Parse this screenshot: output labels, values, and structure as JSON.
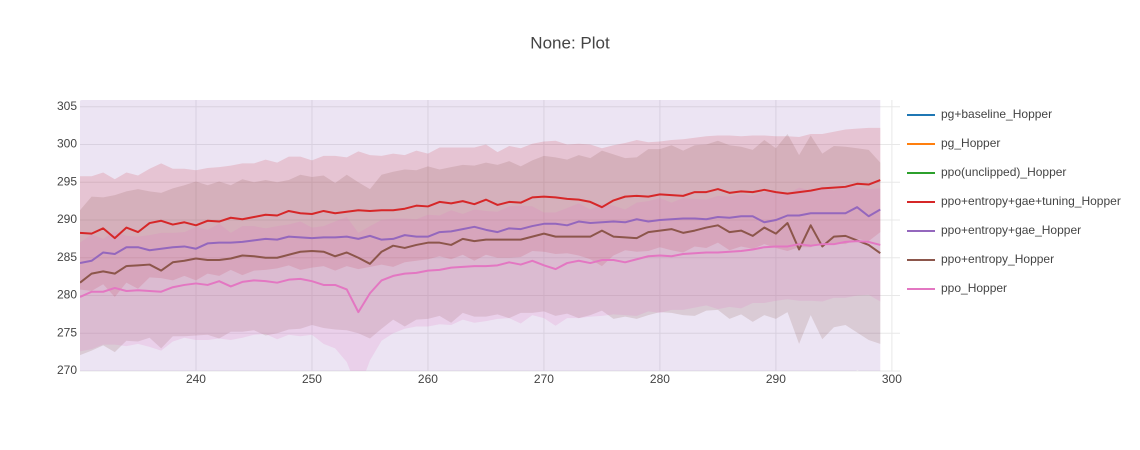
{
  "chart_data": {
    "type": "line",
    "title": "None: Plot",
    "x": [
      230,
      231,
      232,
      233,
      234,
      235,
      236,
      237,
      238,
      239,
      240,
      241,
      242,
      243,
      244,
      245,
      246,
      247,
      248,
      249,
      250,
      251,
      252,
      253,
      254,
      255,
      256,
      257,
      258,
      259,
      260,
      261,
      262,
      263,
      264,
      265,
      266,
      267,
      268,
      269,
      270,
      271,
      272,
      273,
      274,
      275,
      276,
      277,
      278,
      279,
      280,
      281,
      282,
      283,
      284,
      285,
      286,
      287,
      288,
      289,
      290,
      291,
      292,
      293,
      294,
      295,
      296,
      297,
      298,
      299
    ],
    "xlim": [
      230,
      300.7
    ],
    "xticks": [
      240,
      250,
      260,
      270,
      280,
      290,
      300
    ],
    "ylim": [
      270,
      305.9
    ],
    "yticks": [
      270,
      275,
      280,
      285,
      290,
      295,
      300,
      305
    ],
    "grid": true,
    "legend": "right",
    "series": [
      {
        "name": "pg+baseline_Hopper",
        "color": "#1f77b4"
      },
      {
        "name": "pg_Hopper",
        "color": "#ff7f0e"
      },
      {
        "name": "ppo(unclipped)_Hopper",
        "color": "#2ca02c"
      },
      {
        "name": "ppo+entropy+gae+tuning_Hopper",
        "color": "#d62728",
        "values": [
          288.3,
          288.2,
          288.9,
          287.6,
          289.0,
          288.4,
          289.6,
          289.9,
          289.4,
          289.7,
          289.3,
          289.9,
          289.8,
          290.3,
          290.1,
          290.4,
          290.7,
          290.6,
          291.2,
          290.9,
          290.8,
          291.2,
          290.9,
          291.1,
          291.3,
          291.2,
          291.3,
          291.3,
          291.5,
          291.9,
          291.8,
          292.4,
          292.2,
          292.5,
          292.1,
          292.7,
          292.0,
          292.4,
          292.3,
          293.0,
          293.1,
          293.0,
          292.8,
          292.7,
          292.4,
          291.7,
          292.6,
          293.1,
          293.2,
          293.1,
          293.4,
          293.3,
          293.2,
          293.7,
          293.7,
          294.1,
          293.6,
          293.8,
          293.7,
          294.0,
          293.7,
          293.5,
          293.7,
          293.9,
          294.2,
          294.3,
          294.4,
          294.8,
          294.7,
          295.3
        ],
        "error": [
          7.5,
          7.6,
          7.4,
          7.8,
          7.3,
          7.5,
          7.2,
          7.6,
          7.4,
          7.1,
          7.3,
          7.0,
          7.2,
          6.9,
          7.4,
          7.1,
          7.3,
          7.0,
          7.2,
          7.5,
          7.1,
          7.3,
          7.6,
          7.2,
          7.8,
          7.4,
          7.2,
          7.5,
          7.1,
          7.3,
          7.0,
          7.2,
          7.4,
          7.1,
          7.5,
          7.3,
          7.0,
          7.4,
          7.2,
          7.1,
          7.3,
          7.5,
          7.2,
          7.4,
          7.6,
          7.8,
          7.3,
          7.1,
          7.4,
          7.2,
          7.0,
          7.3,
          7.5,
          7.2,
          7.4,
          7.1,
          7.6,
          7.3,
          7.5,
          7.2,
          7.4,
          7.6,
          7.3,
          7.5,
          7.2,
          7.4,
          7.6,
          7.3,
          7.5,
          6.9
        ]
      },
      {
        "name": "ppo+entropy+gae_Hopper",
        "color": "#9467bd",
        "values": [
          284.3,
          284.6,
          285.7,
          285.5,
          286.4,
          286.4,
          286.0,
          286.2,
          286.4,
          286.5,
          286.2,
          286.9,
          287.0,
          287.0,
          287.1,
          287.3,
          287.5,
          287.4,
          287.8,
          287.7,
          287.6,
          287.7,
          287.7,
          287.8,
          287.5,
          287.9,
          287.4,
          287.5,
          288.0,
          287.8,
          287.8,
          288.4,
          288.5,
          288.8,
          289.1,
          288.7,
          288.4,
          288.9,
          288.8,
          289.2,
          289.5,
          289.5,
          289.3,
          289.8,
          289.6,
          289.7,
          289.8,
          289.7,
          290.1,
          289.8,
          290.0,
          290.1,
          290.2,
          290.2,
          290.1,
          290.4,
          290.3,
          290.5,
          290.5,
          289.7,
          290.0,
          290.6,
          290.6,
          290.9,
          290.9,
          290.9,
          290.9,
          291.7,
          290.5,
          291.4
        ],
        "error": [
          21.5,
          22.0,
          21.2,
          21.8,
          22.4,
          21.6,
          21.0,
          21.7,
          22.2,
          21.4,
          21.9,
          21.3,
          21.8,
          22.1,
          21.5,
          21.0,
          21.6,
          22.3,
          21.7,
          21.2,
          21.9,
          21.4,
          22.0,
          21.6,
          21.1,
          21.8,
          22.2,
          21.5,
          21.0,
          21.7,
          22.1,
          21.4,
          21.9,
          21.3,
          21.8,
          22.4,
          21.6,
          21.0,
          21.7,
          22.2,
          21.4,
          21.9,
          21.3,
          21.8,
          22.1,
          21.5,
          21.0,
          21.6,
          22.3,
          21.7,
          21.2,
          21.9,
          21.4,
          22.0,
          21.6,
          21.1,
          21.8,
          22.2,
          21.5,
          21.0,
          21.7,
          22.1,
          21.4,
          21.9,
          21.3,
          21.8,
          22.4,
          21.6,
          21.0,
          21.7
        ]
      },
      {
        "name": "ppo+entropy_Hopper",
        "color": "#8c564b",
        "values": [
          281.7,
          282.9,
          283.2,
          282.9,
          283.9,
          284.0,
          284.1,
          283.3,
          284.4,
          284.6,
          284.9,
          284.7,
          284.7,
          284.9,
          285.3,
          285.2,
          285.0,
          285.0,
          285.4,
          285.8,
          285.9,
          285.8,
          285.2,
          285.7,
          285.0,
          284.2,
          285.8,
          286.6,
          286.3,
          286.7,
          287.0,
          287.0,
          286.7,
          287.5,
          287.2,
          287.4,
          287.4,
          287.4,
          287.4,
          287.8,
          288.2,
          287.8,
          287.8,
          287.8,
          287.8,
          288.6,
          287.8,
          287.7,
          287.6,
          288.4,
          288.6,
          288.8,
          288.3,
          288.6,
          289.0,
          289.3,
          288.4,
          288.6,
          287.9,
          289.0,
          288.2,
          289.6,
          286.1,
          289.3,
          286.5,
          287.8,
          287.9,
          287.3,
          286.7,
          285.6
        ],
        "error": [
          9.6,
          10.2,
          9.8,
          10.4,
          9.9,
          10.1,
          9.7,
          10.3,
          9.8,
          10.0,
          10.2,
          9.9,
          10.4,
          9.7,
          10.1,
          9.8,
          10.3,
          10.0,
          9.9,
          10.2,
          9.8,
          10.1,
          9.7,
          10.3,
          10.0,
          9.9,
          10.2,
          9.8,
          10.4,
          9.9,
          10.1,
          9.7,
          10.3,
          9.8,
          10.0,
          10.2,
          9.9,
          10.4,
          9.7,
          10.1,
          10.3,
          10.5,
          10.2,
          10.8,
          10.4,
          10.6,
          10.9,
          10.5,
          10.7,
          11.0,
          10.8,
          11.1,
          10.9,
          11.3,
          11.0,
          11.2,
          11.5,
          11.1,
          11.4,
          11.6,
          11.3,
          11.8,
          12.5,
          11.9,
          12.3,
          12.0,
          11.8,
          12.2,
          12.6,
          12.0
        ]
      },
      {
        "name": "ppo_Hopper",
        "color": "#e377c2",
        "values": [
          279.8,
          280.5,
          280.5,
          281.0,
          280.6,
          280.7,
          280.6,
          280.5,
          281.1,
          281.4,
          281.6,
          281.4,
          281.9,
          281.2,
          281.8,
          282.0,
          281.9,
          281.7,
          282.1,
          282.2,
          281.9,
          281.4,
          281.4,
          280.8,
          277.8,
          280.3,
          282.0,
          282.6,
          282.9,
          283.0,
          283.3,
          283.4,
          283.7,
          283.8,
          283.9,
          283.9,
          284.0,
          284.4,
          284.1,
          284.6,
          284.0,
          283.5,
          284.3,
          284.6,
          284.3,
          284.7,
          284.7,
          284.4,
          284.8,
          285.2,
          285.3,
          285.2,
          285.5,
          285.6,
          285.7,
          285.7,
          285.8,
          285.9,
          286.1,
          286.4,
          286.5,
          286.5,
          286.8,
          286.6,
          286.8,
          286.8,
          287.1,
          287.2,
          287.1,
          286.7
        ],
        "error": [
          7.2,
          7.6,
          7.0,
          7.5,
          7.3,
          7.1,
          7.4,
          7.8,
          7.2,
          7.0,
          7.5,
          7.3,
          7.6,
          7.1,
          7.4,
          7.2,
          7.0,
          7.5,
          7.3,
          7.6,
          7.1,
          7.8,
          8.4,
          9.6,
          10.5,
          8.9,
          8.0,
          7.6,
          7.3,
          7.1,
          7.4,
          7.2,
          7.6,
          7.0,
          7.5,
          7.3,
          7.1,
          7.4,
          7.8,
          7.2,
          7.0,
          7.5,
          7.3,
          7.6,
          7.1,
          7.4,
          7.2,
          7.0,
          7.5,
          7.3,
          7.6,
          7.1,
          7.4,
          7.2,
          7.0,
          7.5,
          7.3,
          7.6,
          7.1,
          7.4,
          7.2,
          7.0,
          7.5,
          7.3,
          7.6,
          7.1,
          7.4,
          7.2,
          7.0,
          7.5
        ]
      }
    ]
  }
}
